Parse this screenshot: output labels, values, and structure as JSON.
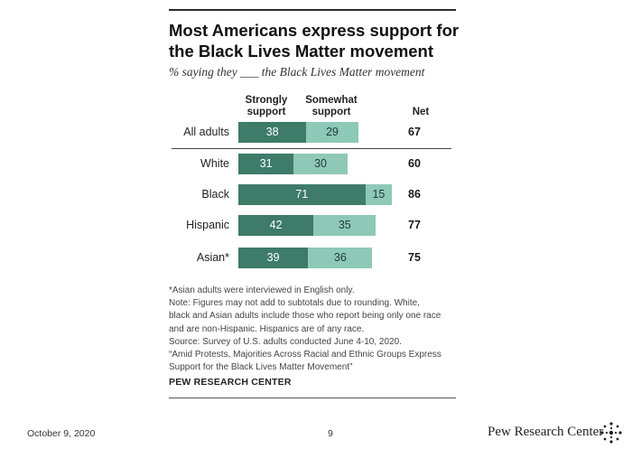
{
  "title": "Most Americans express support for the Black Lives Matter movement",
  "subtitle": "% saying they ___ the Black Lives Matter movement",
  "headers": {
    "strongly": "Strongly support",
    "somewhat": "Somewhat support",
    "net": "Net"
  },
  "chart_data": {
    "type": "bar",
    "orientation": "horizontal",
    "stacked": true,
    "categories": [
      "All adults",
      "White",
      "Black",
      "Hispanic",
      "Asian*"
    ],
    "series": [
      {
        "name": "Strongly support",
        "values": [
          38,
          31,
          71,
          42,
          39
        ],
        "color": "#3e7b69"
      },
      {
        "name": "Somewhat support",
        "values": [
          29,
          30,
          15,
          35,
          36
        ],
        "color": "#8dc9b6"
      }
    ],
    "net": [
      67,
      60,
      86,
      77,
      75
    ]
  },
  "notes": [
    "*Asian adults were interviewed in English only.",
    "Note: Figures may not add to subtotals due to rounding. White,",
    "black and Asian adults include those who report being only one race",
    "and are non-Hispanic. Hispanics are of any race.",
    "Source: Survey of U.S. adults conducted June 4-10, 2020.",
    "“Amid Protests, Majorities Across Racial and Ethnic Groups Express",
    "Support for the Black Lives Matter Movement”"
  ],
  "source_brand": "PEW RESEARCH CENTER",
  "footer": {
    "date": "October 9, 2020",
    "page": "9",
    "brand": "Pew Research Center"
  }
}
